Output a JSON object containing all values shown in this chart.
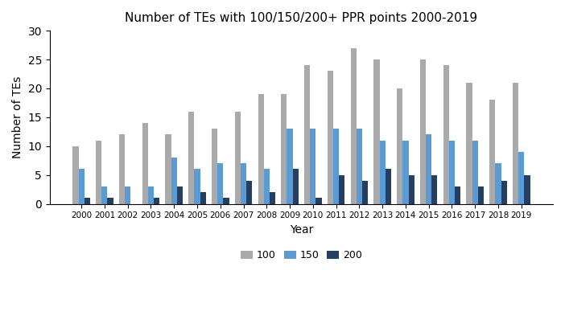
{
  "title": "Number of TEs with 100/150/200+ PPR points 2000-2019",
  "xlabel": "Year",
  "ylabel": "Number of TEs",
  "years": [
    2000,
    2001,
    2002,
    2003,
    2004,
    2005,
    2006,
    2007,
    2008,
    2009,
    2010,
    2011,
    2012,
    2013,
    2014,
    2015,
    2016,
    2017,
    2018,
    2019
  ],
  "values_100": [
    10,
    11,
    12,
    14,
    12,
    16,
    13,
    16,
    19,
    19,
    24,
    23,
    27,
    25,
    20,
    25,
    24,
    21,
    18,
    21
  ],
  "values_150": [
    6,
    3,
    3,
    3,
    8,
    6,
    7,
    7,
    6,
    13,
    13,
    13,
    13,
    11,
    11,
    12,
    11,
    11,
    7,
    9
  ],
  "values_200": [
    1,
    1,
    0,
    1,
    3,
    2,
    1,
    4,
    2,
    6,
    1,
    5,
    4,
    6,
    5,
    5,
    3,
    3,
    4,
    5
  ],
  "color_100": "#aaaaaa",
  "color_150": "#5b9bd5",
  "color_200": "#243f60",
  "ylim": [
    0,
    30
  ],
  "yticks": [
    0,
    5,
    10,
    15,
    20,
    25,
    30
  ],
  "legend_labels": [
    "100",
    "150",
    "200"
  ],
  "bar_width": 0.25,
  "figsize": [
    7.02,
    4.18
  ],
  "dpi": 100
}
